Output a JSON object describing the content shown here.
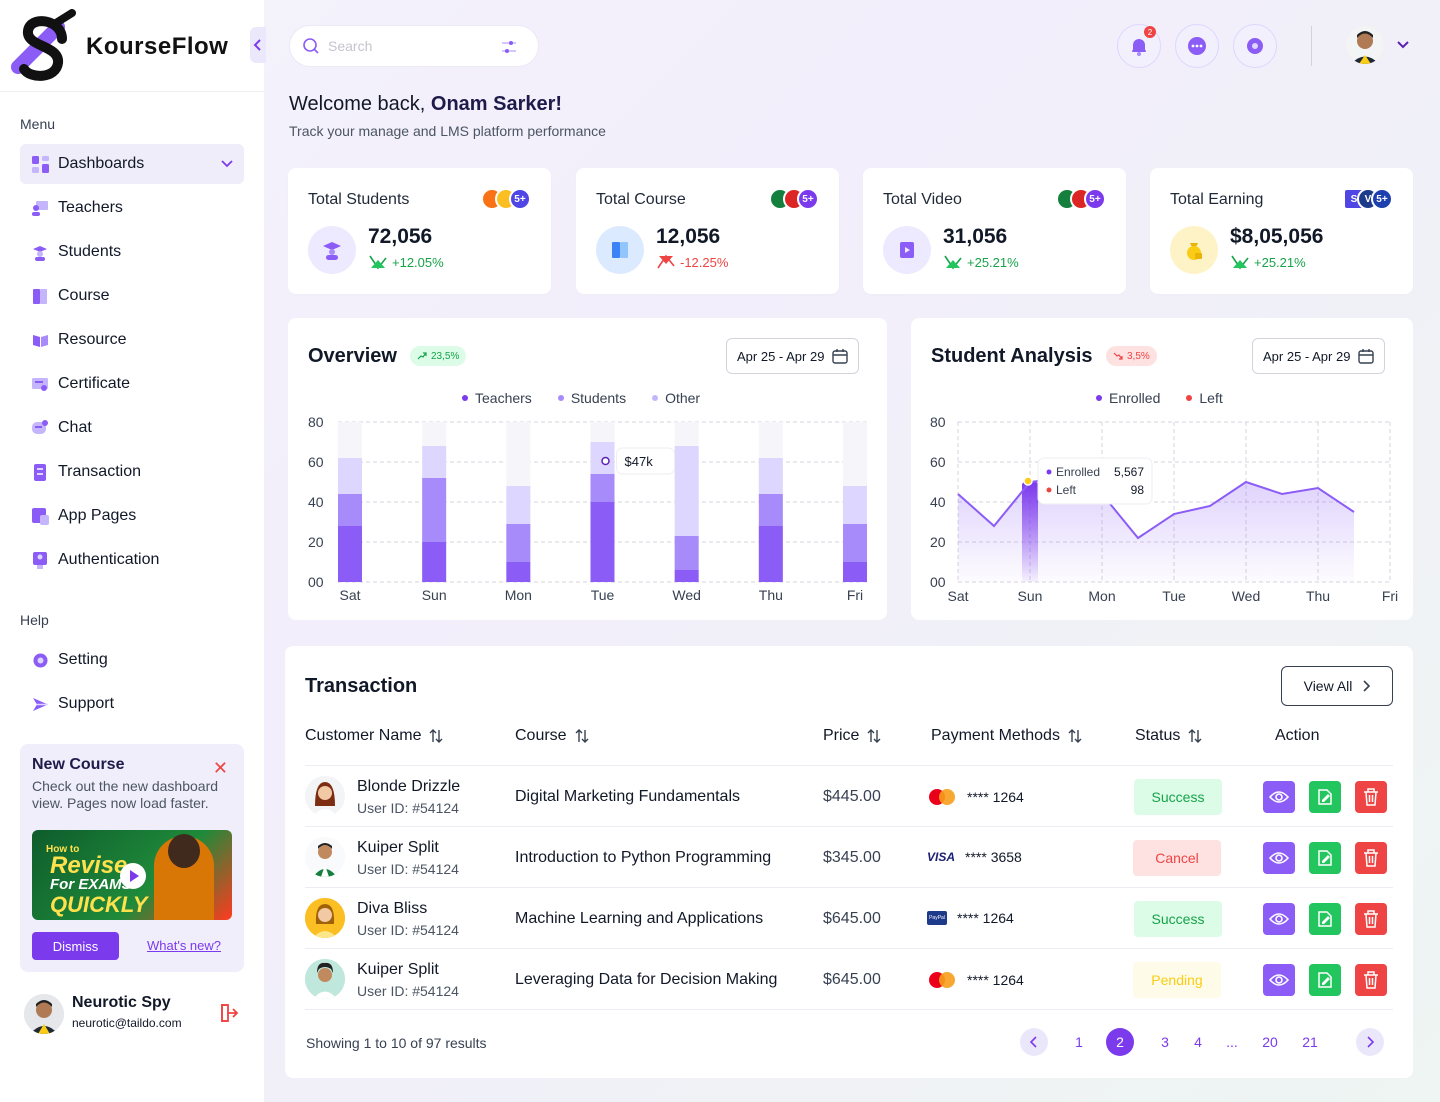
{
  "brand": {
    "name": "KourseFlow"
  },
  "sidebar": {
    "menu_label": "Menu",
    "items": [
      {
        "label": "Dashboards",
        "icon": "dashboard-icon"
      },
      {
        "label": "Teachers",
        "icon": "teacher-icon"
      },
      {
        "label": "Students",
        "icon": "students-icon"
      },
      {
        "label": "Course",
        "icon": "course-icon"
      },
      {
        "label": "Resource",
        "icon": "resource-icon"
      },
      {
        "label": "Certificate",
        "icon": "certificate-icon"
      },
      {
        "label": "Chat",
        "icon": "chat-icon"
      },
      {
        "label": "Transaction",
        "icon": "transaction-icon"
      },
      {
        "label": "App Pages",
        "icon": "app-pages-icon"
      },
      {
        "label": "Authentication",
        "icon": "authentication-icon"
      }
    ],
    "help_label": "Help",
    "help_items": [
      {
        "label": "Setting",
        "icon": "gear-icon"
      },
      {
        "label": "Support",
        "icon": "support-icon"
      }
    ],
    "promo": {
      "title": "New Course",
      "text": "Check out the new dashboard view. Pages now load faster.",
      "video_line1": "How to",
      "video_line2": "Revise",
      "video_line3": "For EXAMS",
      "video_line4": "QUICKLY",
      "dismiss": "Dismiss",
      "whats_new": "What's new?"
    },
    "user": {
      "name": "Neurotic Spy",
      "email": "neurotic@taildo.com"
    }
  },
  "header": {
    "search_placeholder": "Search",
    "notification_count": "2"
  },
  "welcome": {
    "prefix": "Welcome back, ",
    "name": "Onam Sarker!",
    "subtitle": "Track your manage and LMS platform performance"
  },
  "stats": [
    {
      "title": "Total Students",
      "value": "72,056",
      "change": "+12.05%",
      "trend": "up",
      "stack_more": "5+"
    },
    {
      "title": "Total Course",
      "value": "12,056",
      "change": "-12.25%",
      "trend": "down",
      "stack_more": "5+"
    },
    {
      "title": "Total Video",
      "value": "31,056",
      "change": "+25.21%",
      "trend": "up",
      "stack_more": "5+"
    },
    {
      "title": "Total Earning",
      "value": "$8,05,056",
      "change": "+25.21%",
      "trend": "up",
      "stack_more": "5+",
      "stack_letters": [
        "S",
        "V"
      ]
    }
  ],
  "overview": {
    "title": "Overview",
    "badge": "23,5%",
    "date_range": "Apr 25 - Apr 29",
    "tooltip": "$47k"
  },
  "student_analysis": {
    "title": "Student Analysis",
    "badge": "3,5%",
    "date_range": "Apr 25 - Apr 29",
    "tooltip": {
      "enrolled_label": "Enrolled",
      "enrolled_value": "5,567",
      "left_label": "Left",
      "left_value": "98"
    }
  },
  "chart_data": [
    {
      "type": "bar",
      "title": "Overview",
      "categories": [
        "Sat",
        "Sun",
        "Mon",
        "Tue",
        "Wed",
        "Thu",
        "Fri"
      ],
      "yticks": [
        "00",
        "20",
        "40",
        "60",
        "80"
      ],
      "ylim": [
        0,
        80
      ],
      "stacked": true,
      "legend_position": "top-center",
      "series": [
        {
          "name": "Teachers",
          "values": [
            28,
            20,
            10,
            40,
            6,
            28,
            10
          ],
          "color": "#8b5cf6"
        },
        {
          "name": "Students",
          "values": [
            16,
            32,
            19,
            14,
            17,
            16,
            19
          ],
          "color": "#a78bfa"
        },
        {
          "name": "Other",
          "values": [
            18,
            16,
            19,
            16,
            45,
            18,
            19
          ],
          "color": "#ddd6fe"
        }
      ],
      "bar_max": 80,
      "grid": true
    },
    {
      "type": "line",
      "title": "Student Analysis",
      "x": [
        "Sat",
        "Sun",
        "Mon",
        "Tue",
        "Wed",
        "Thu",
        "Fri"
      ],
      "yticks": [
        "00",
        "20",
        "40",
        "60",
        "80"
      ],
      "ylim": [
        0,
        80
      ],
      "legend_position": "top-center",
      "series": [
        {
          "name": "Enrolled",
          "color": "#8b5cf6",
          "points": [
            [
              0,
              44
            ],
            [
              0.5,
              28
            ],
            [
              1,
              50
            ],
            [
              1.5,
              52
            ],
            [
              2,
              44
            ],
            [
              2.5,
              22
            ],
            [
              3,
              34
            ],
            [
              3.5,
              38
            ],
            [
              4,
              50
            ],
            [
              4.5,
              44
            ],
            [
              5,
              47
            ],
            [
              5.5,
              35
            ]
          ]
        },
        {
          "name": "Left",
          "color": "#ef4444",
          "points": []
        }
      ],
      "grid": true
    }
  ],
  "transaction": {
    "title": "Transaction",
    "view_all": "View All",
    "headers": {
      "customer": "Customer Name",
      "course": "Course",
      "price": "Price",
      "payment": "Payment Methods",
      "status": "Status",
      "action": "Action"
    },
    "rows": [
      {
        "name": "Blonde Drizzle",
        "user_id": "User ID: #54124",
        "course": "Digital Marketing Fundamentals",
        "price": "$445.00",
        "card_brand": "mastercard",
        "card": "**** 1264",
        "status": "Success"
      },
      {
        "name": "Kuiper Split",
        "user_id": "User ID: #54124",
        "course": "Introduction to Python Programming",
        "price": "$345.00",
        "card_brand": "visa",
        "card_brand_label": "VISA",
        "card": "**** 3658",
        "status": "Cancel"
      },
      {
        "name": "Diva Bliss",
        "user_id": "User ID: #54124",
        "course": "Machine Learning and Applications",
        "price": "$645.00",
        "card_brand": "paypal",
        "card_brand_label": "PayPal",
        "card": "**** 1264",
        "status": "Success"
      },
      {
        "name": "Kuiper Split",
        "user_id": "User ID: #54124",
        "course": "Leveraging Data for Decision Making",
        "price": "$645.00",
        "card_brand": "mastercard",
        "card": "**** 1264",
        "status": "Pending"
      }
    ],
    "showing": "Showing 1 to 10 of 97 results",
    "pages": [
      "1",
      "2",
      "3",
      "4",
      "...",
      "20",
      "21"
    ],
    "current_page": "2"
  },
  "colors": {
    "accent": "#7c3aed",
    "success_bg": "#dcfce7",
    "success_text": "#16a34a",
    "cancel_bg": "#fee2e2",
    "cancel_text": "#ef4444",
    "pending_bg": "#fef9c3",
    "pending_text": "#eab308"
  }
}
